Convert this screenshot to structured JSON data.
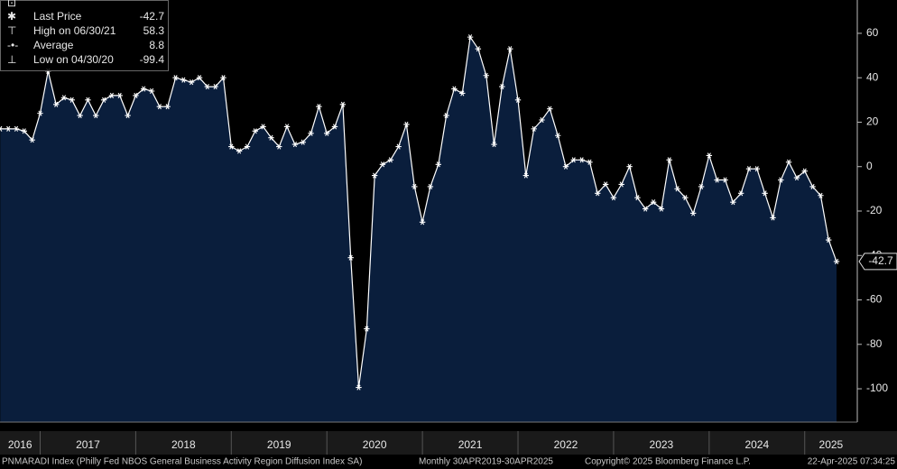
{
  "chart_data": {
    "type": "area",
    "legend": [
      {
        "label": "Last Price",
        "value": -42.7
      },
      {
        "label": "High on 06/30/21",
        "value": 58.3
      },
      {
        "label": "Average",
        "value": 8.8
      },
      {
        "label": "Low on 04/30/20",
        "value": -99.4
      }
    ],
    "legend_position": "top-left",
    "color": "#0a1e3c",
    "line_color": "#ffffff",
    "x": [
      2016.583,
      2016.667,
      2016.75,
      2016.833,
      2016.917,
      2017,
      2017.083,
      2017.167,
      2017.25,
      2017.333,
      2017.417,
      2017.5,
      2017.583,
      2017.667,
      2017.75,
      2017.833,
      2017.917,
      2018,
      2018.083,
      2018.167,
      2018.25,
      2018.333,
      2018.417,
      2018.5,
      2018.583,
      2018.667,
      2018.75,
      2018.833,
      2018.917,
      2019,
      2019.083,
      2019.167,
      2019.25,
      2019.333,
      2019.417,
      2019.5,
      2019.583,
      2019.667,
      2019.75,
      2019.833,
      2019.917,
      2020,
      2020.083,
      2020.167,
      2020.25,
      2020.333,
      2020.417,
      2020.5,
      2020.583,
      2020.667,
      2020.75,
      2020.833,
      2020.917,
      2021,
      2021.083,
      2021.167,
      2021.25,
      2021.333,
      2021.417,
      2021.5,
      2021.583,
      2021.667,
      2021.75,
      2021.833,
      2021.917,
      2022,
      2022.083,
      2022.167,
      2022.25,
      2022.333,
      2022.417,
      2022.5,
      2022.583,
      2022.667,
      2022.75,
      2022.833,
      2022.917,
      2023,
      2023.083,
      2023.167,
      2023.25,
      2023.333,
      2023.417,
      2023.5,
      2023.583,
      2023.667,
      2023.75,
      2023.833,
      2023.917,
      2024,
      2024.083,
      2024.167,
      2024.25,
      2024.333,
      2024.417,
      2024.5,
      2024.583,
      2024.667,
      2024.75,
      2024.833,
      2024.917,
      2025,
      2025.083,
      2025.167,
      2025.25,
      2025.333
    ],
    "values": [
      17,
      17,
      17,
      16,
      12,
      24,
      43,
      28,
      31,
      30,
      23,
      30,
      23,
      30,
      32,
      32,
      23,
      32,
      35,
      34,
      27,
      27,
      40,
      39,
      38,
      40,
      36,
      36,
      40,
      9,
      7,
      9,
      16,
      18,
      13,
      9,
      18,
      10,
      11,
      15,
      27,
      15,
      18,
      28,
      -41,
      -99.4,
      -73,
      -4,
      1,
      3,
      9,
      19,
      -9,
      -25,
      -9,
      1,
      23,
      35,
      33,
      58.3,
      53,
      41,
      10,
      36,
      53,
      30,
      -4,
      17,
      21,
      26,
      14,
      0,
      3,
      3,
      2,
      -12,
      -8,
      -14,
      -8,
      0,
      -14,
      -19,
      -16,
      -19,
      3,
      -10,
      -14,
      -21,
      -9,
      5,
      -6,
      -6,
      -16,
      -12,
      -1,
      -1,
      -12,
      -23,
      -6,
      2,
      -5,
      -2,
      -9,
      -13,
      -33,
      -42.7
    ],
    "xlim": [
      2016.58,
      2025.55
    ],
    "xticks": [
      2016,
      2017,
      2018,
      2019,
      2020,
      2021,
      2022,
      2023,
      2024,
      2025
    ],
    "ylim": [
      -115,
      75
    ],
    "yticks": [
      60,
      40,
      20,
      0,
      -20,
      -40,
      -60,
      -80,
      -100
    ],
    "grid": false,
    "footer": {
      "description": "PNMARADI Index (Philly Fed NBOS General Business Activity Region Diffusion Index SA)",
      "range": "Monthly 30APR2019-30APR2025",
      "copyright": "Copyright© 2025 Bloomberg Finance L.P.",
      "timestamp": "22-Apr-2025 07:34:25"
    }
  }
}
